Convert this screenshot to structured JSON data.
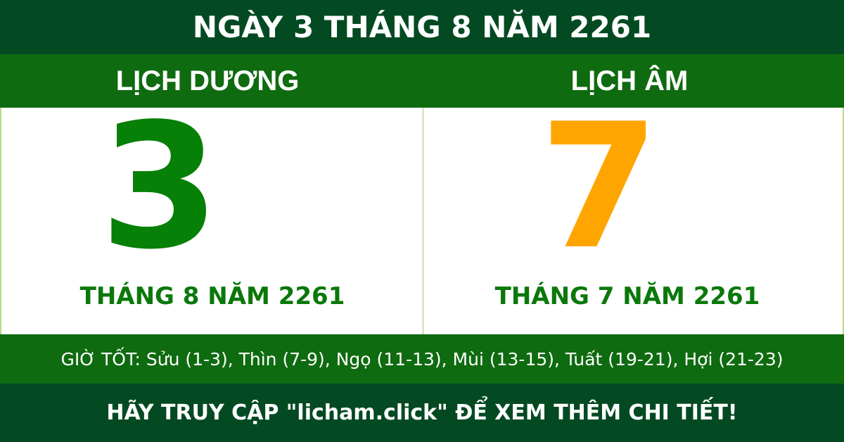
{
  "title": "NGÀY 3 THÁNG 8 NĂM 2261",
  "solar": {
    "heading": "LỊCH DƯƠNG",
    "day": "3",
    "month_year": "THÁNG 8 NĂM 2261"
  },
  "lunar": {
    "heading": "LỊCH ÂM",
    "day": "7",
    "month_year": "THÁNG 7 NĂM 2261"
  },
  "good_hours": "GIỜ TỐT: Sửu (1-3), Thìn (7-9), Ngọ (11-13), Mùi (13-15), Tuất (19-21), Hợi (21-23)",
  "footer": "HÃY TRUY CẬP \"licham.click\" ĐỂ XEM THÊM CHI TIẾT!",
  "colors": {
    "dark_green": "#034a22",
    "green": "#0f6b10",
    "solar_day": "#078007",
    "lunar_day": "#ffa500"
  }
}
